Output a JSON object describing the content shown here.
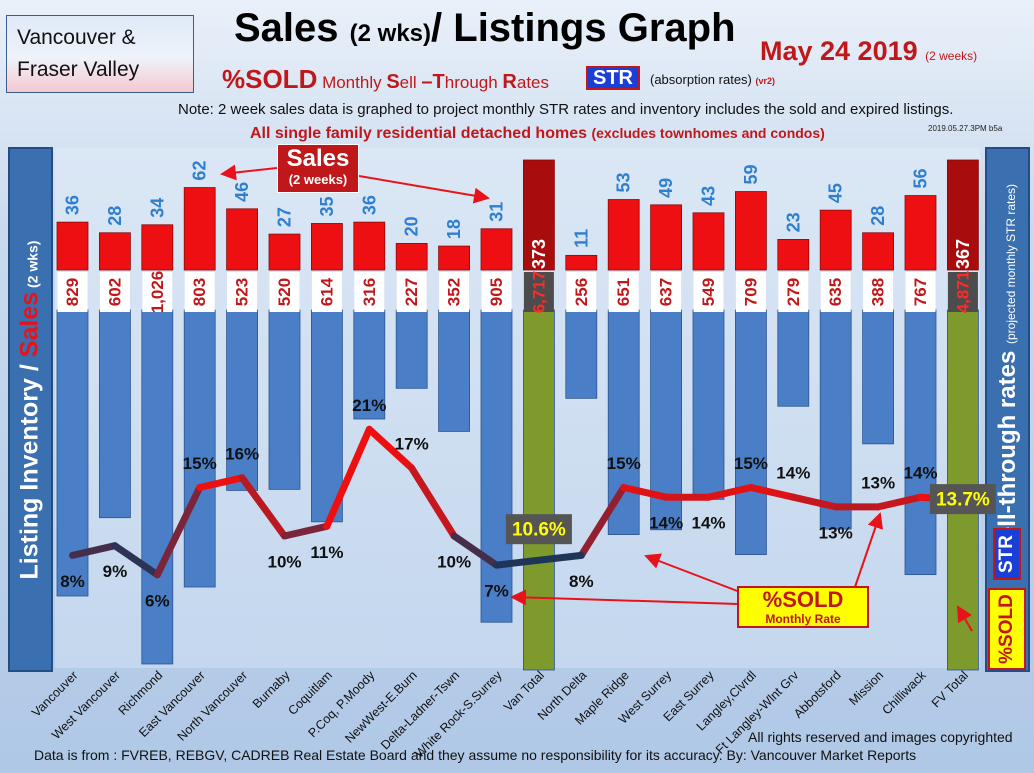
{
  "header": {
    "region_line1": "Vancouver &",
    "region_line2": "Fraser Valley",
    "title_main": "Sales ",
    "title_paren": "(2 wks)",
    "title_rest": "/ Listings Graph",
    "date": "May 24 2019",
    "date_note": "(2 weeks)",
    "sub_sold": "%SOLD",
    "sub_monthly": " Monthly ",
    "sub_S": "S",
    "sub_ell": "ell ",
    "sub_dashT": "–T",
    "sub_hrough": "hrough ",
    "sub_R": "R",
    "sub_ates": "ates",
    "str_badge": "STR",
    "absorb": "(absorption rates)",
    "absorb_ver": "(vr2)",
    "note": "Note: 2 week sales data is graphed to project monthly STR rates and inventory includes the sold and expired listings.",
    "excl_main": "All single family residential detached homes ",
    "excl_paren": "(excludes townhomes and condos)",
    "stamp": "2019.05.27.3PM b5a"
  },
  "left_axis": {
    "part1": "Listing Inventory / ",
    "part2": "Sales",
    "part3": " (2  wks)"
  },
  "right_axis": {
    "title": "Sell-through rates ",
    "note": "(projected monthly STR rates)",
    "str": "STR",
    "sold": "%SOLD"
  },
  "callouts": {
    "sales": "Sales",
    "sales_sub": "(2 weeks)",
    "sold": "%SOLD",
    "sold_sub": "Monthly Rate"
  },
  "footer": {
    "rights": "All rights reserved and  images copyrighted",
    "source": "Data is from : FVREB, REBGV, CADREB Real Estate Board and they assume no responsibility for its accuracy. By: Vancouver Market Reports"
  },
  "colors": {
    "sales_bar": "#ee0f12",
    "total_sales_bar": "#a80c0c",
    "inventory_bar": "#4a7fc8",
    "total_inventory_bar": "#7e9a2c",
    "sales_label": "#2f7fd0",
    "inventory_label": "#c0181a",
    "line_low": "#1f3558",
    "line_high": "#ee1010"
  },
  "chart_data": {
    "type": "bar",
    "categories": [
      "Vancouver",
      "West Vancouver",
      "Richmond",
      "East Vancouver",
      "North Vancouver",
      "Burnaby",
      "Coquitlam",
      "P.Coq, P.Moody",
      "NewWest-E.Burn",
      "Delta-Ladner-Tswn",
      "White Rock-S.Surrey",
      "Van Total",
      "North Delta",
      "Maple Ridge",
      "West Surrey",
      "East Surrey",
      "Langley,Clvrdl",
      "Ft Langley-Wlnt Grv",
      "Abbotsford",
      "Mission",
      "Chilliwack",
      "FV Total"
    ],
    "totals": [
      "Van Total",
      "FV Total"
    ],
    "series": [
      {
        "name": "Sales",
        "values": [
          36,
          28,
          34,
          62,
          46,
          27,
          35,
          36,
          20,
          18,
          31,
          373,
          11,
          53,
          49,
          43,
          59,
          23,
          45,
          28,
          56,
          367
        ]
      },
      {
        "name": "Listing Inventory",
        "values": [
          829,
          602,
          1026,
          803,
          523,
          520,
          614,
          316,
          227,
          352,
          905,
          6717,
          256,
          651,
          637,
          549,
          709,
          279,
          635,
          388,
          767,
          4871
        ],
        "labels": [
          "829",
          "602",
          "1,026",
          "803",
          "523",
          "520",
          "614",
          "316",
          "227",
          "352",
          "905",
          "6,717",
          "256",
          "651",
          "637",
          "549",
          "709",
          "279",
          "635",
          "388",
          "767",
          "4,871"
        ]
      },
      {
        "name": "%SOLD",
        "values": [
          8,
          9,
          6,
          15,
          16,
          10,
          11,
          21,
          17,
          10,
          7,
          10.6,
          8,
          15,
          14,
          14,
          15,
          14,
          13,
          13,
          14,
          13.7
        ],
        "labels": [
          "8%",
          "9%",
          "6%",
          "15%",
          "16%",
          "10%",
          "11%",
          "21%",
          "17%",
          "10%",
          "7%",
          "10.6%",
          "8%",
          "15%",
          "14%",
          "14%",
          "15%",
          "14%",
          "13%",
          "13%",
          "14%",
          "13.7%"
        ]
      }
    ]
  }
}
